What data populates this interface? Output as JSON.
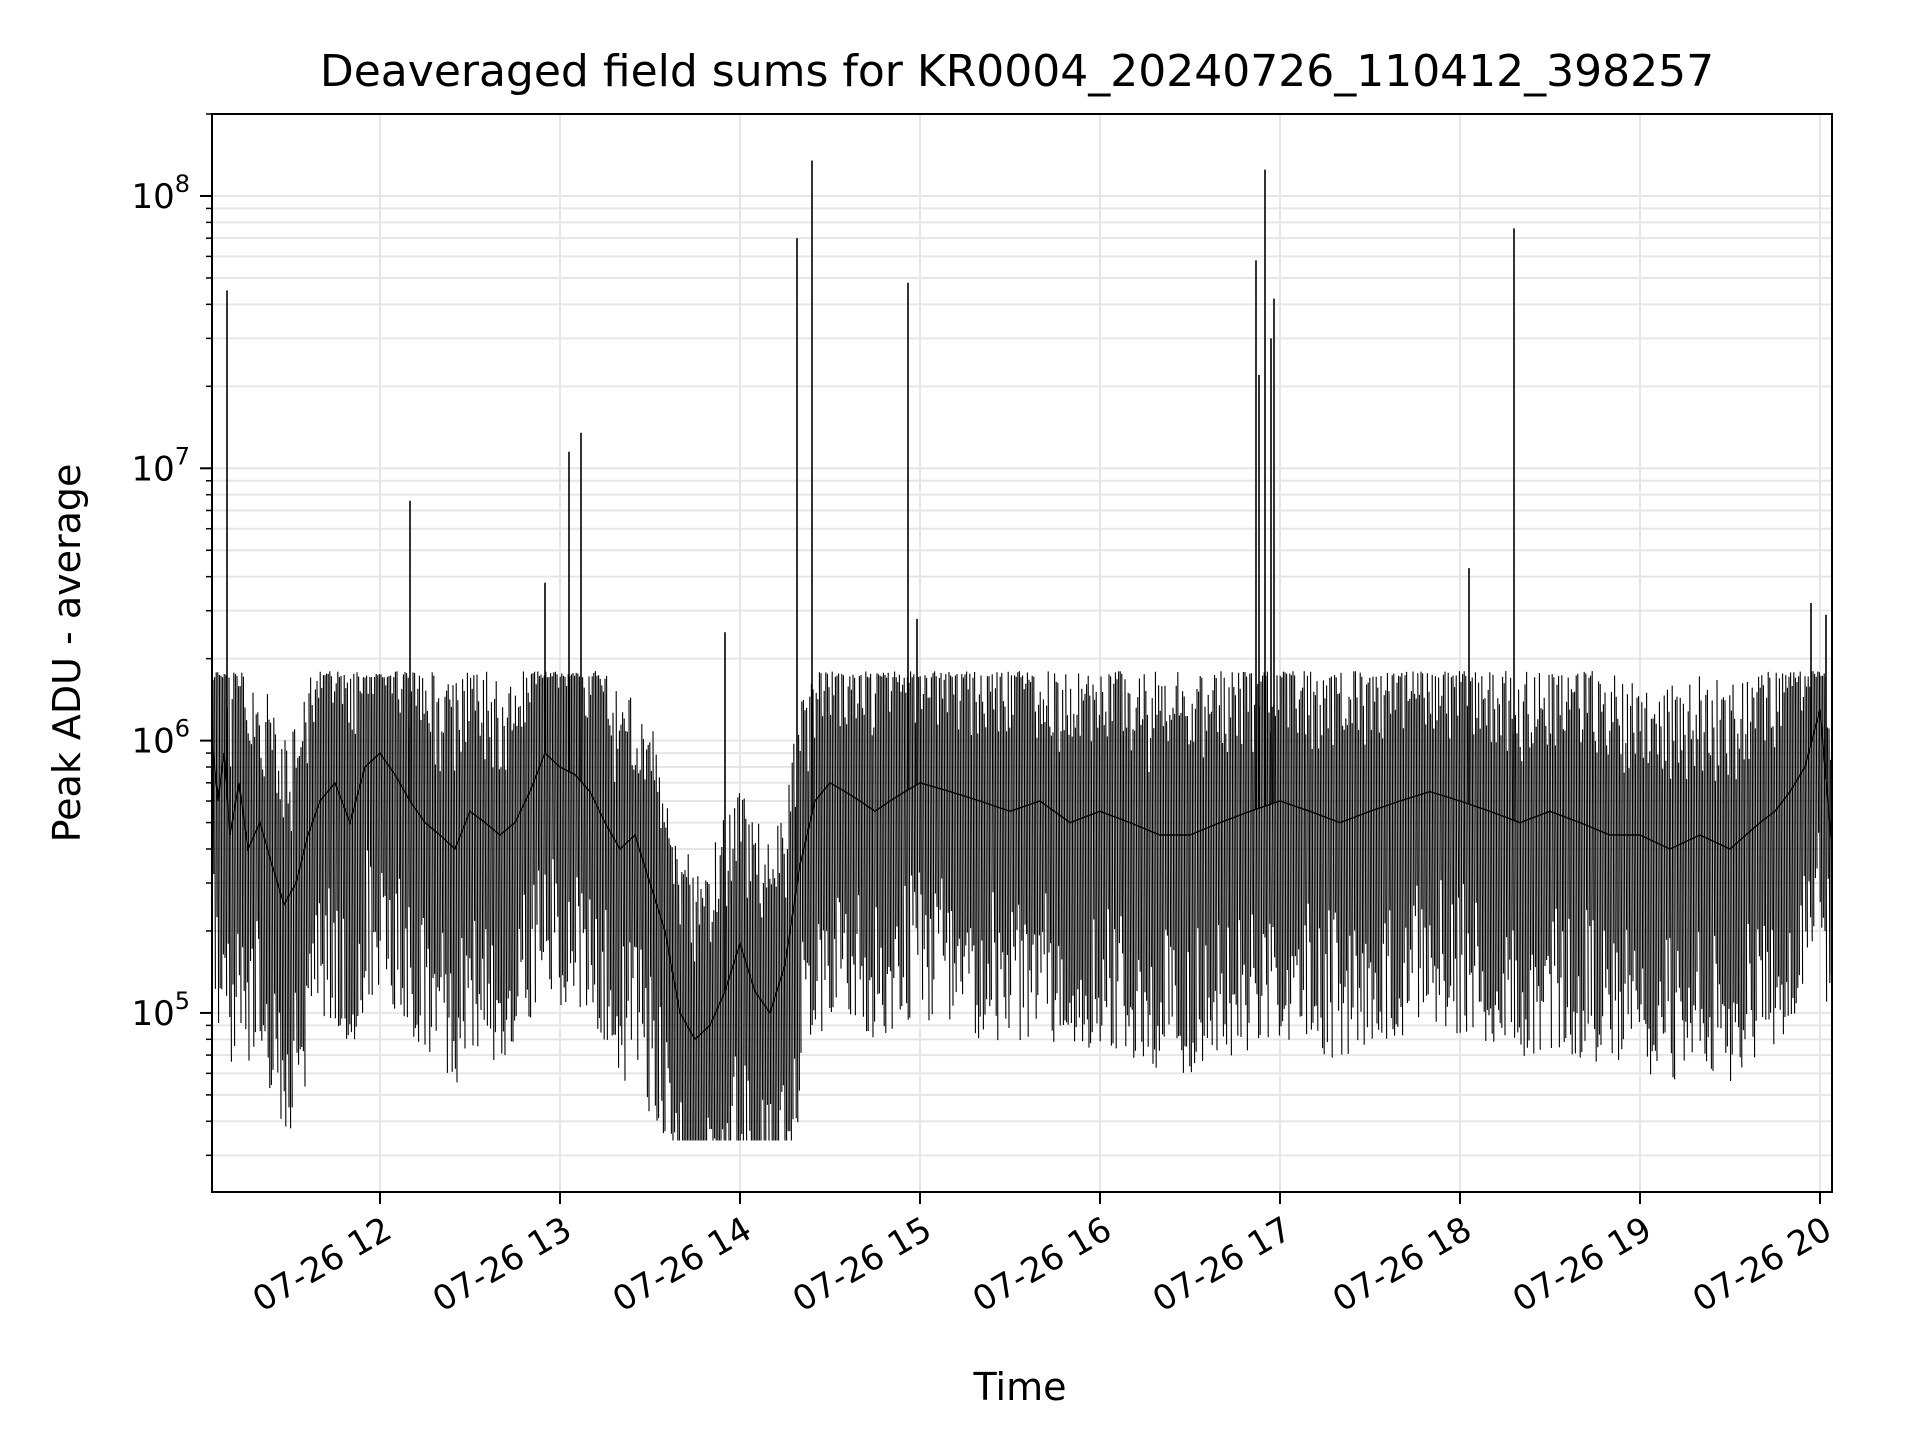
{
  "chart_data": {
    "type": "line",
    "title": "Deaveraged field sums for KR0004_20240726_110412_398257",
    "xlabel": "Time",
    "ylabel": "Peak ADU - average",
    "yscale": "log",
    "grid": true,
    "line_color": "#000000",
    "grid_color": "#e6e6e6",
    "xlim": [
      "2024-07-26 11:04",
      "2024-07-26 20:04"
    ],
    "ylim": [
      22000,
      200000000
    ],
    "x_ticks": [
      {
        "value": "2024-07-26 12:00",
        "label": "07-26 12"
      },
      {
        "value": "2024-07-26 13:00",
        "label": "07-26 13"
      },
      {
        "value": "2024-07-26 14:00",
        "label": "07-26 14"
      },
      {
        "value": "2024-07-26 15:00",
        "label": "07-26 15"
      },
      {
        "value": "2024-07-26 16:00",
        "label": "07-26 16"
      },
      {
        "value": "2024-07-26 17:00",
        "label": "07-26 17"
      },
      {
        "value": "2024-07-26 18:00",
        "label": "07-26 18"
      },
      {
        "value": "2024-07-26 19:00",
        "label": "07-26 19"
      },
      {
        "value": "2024-07-26 20:00",
        "label": "07-26 20"
      }
    ],
    "y_ticks": [
      {
        "value": 100000,
        "base": "10",
        "exp": "5"
      },
      {
        "value": 1000000,
        "base": "10",
        "exp": "6"
      },
      {
        "value": 10000000,
        "base": "10",
        "exp": "7"
      },
      {
        "value": 100000000,
        "base": "10",
        "exp": "8"
      }
    ],
    "series": [
      {
        "x": [
          "2024-07-26 11:04",
          "2024-07-26 11:06",
          "2024-07-26 11:08",
          "2024-07-26 11:10",
          "2024-07-26 11:13",
          "2024-07-26 11:16",
          "2024-07-26 11:20",
          "2024-07-26 11:24",
          "2024-07-26 11:28",
          "2024-07-26 11:32",
          "2024-07-26 11:36",
          "2024-07-26 11:40",
          "2024-07-26 11:45",
          "2024-07-26 11:50",
          "2024-07-26 11:55",
          "2024-07-26 12:00",
          "2024-07-26 12:05",
          "2024-07-26 12:10",
          "2024-07-26 12:15",
          "2024-07-26 12:20",
          "2024-07-26 12:25",
          "2024-07-26 12:30",
          "2024-07-26 12:35",
          "2024-07-26 12:40",
          "2024-07-26 12:45",
          "2024-07-26 12:50",
          "2024-07-26 12:55",
          "2024-07-26 13:00",
          "2024-07-26 13:05",
          "2024-07-26 13:10",
          "2024-07-26 13:15",
          "2024-07-26 13:20",
          "2024-07-26 13:25",
          "2024-07-26 13:30",
          "2024-07-26 13:35",
          "2024-07-26 13:40",
          "2024-07-26 13:45",
          "2024-07-26 13:50",
          "2024-07-26 13:55",
          "2024-07-26 14:00",
          "2024-07-26 14:05",
          "2024-07-26 14:10",
          "2024-07-26 14:15",
          "2024-07-26 14:20",
          "2024-07-26 14:25",
          "2024-07-26 14:30",
          "2024-07-26 14:35",
          "2024-07-26 14:40",
          "2024-07-26 14:45",
          "2024-07-26 14:50",
          "2024-07-26 14:55",
          "2024-07-26 15:00",
          "2024-07-26 15:10",
          "2024-07-26 15:20",
          "2024-07-26 15:30",
          "2024-07-26 15:40",
          "2024-07-26 15:50",
          "2024-07-26 16:00",
          "2024-07-26 16:10",
          "2024-07-26 16:20",
          "2024-07-26 16:30",
          "2024-07-26 16:40",
          "2024-07-26 16:50",
          "2024-07-26 17:00",
          "2024-07-26 17:10",
          "2024-07-26 17:20",
          "2024-07-26 17:30",
          "2024-07-26 17:40",
          "2024-07-26 17:50",
          "2024-07-26 18:00",
          "2024-07-26 18:10",
          "2024-07-26 18:20",
          "2024-07-26 18:30",
          "2024-07-26 18:40",
          "2024-07-26 18:50",
          "2024-07-26 19:00",
          "2024-07-26 19:10",
          "2024-07-26 19:20",
          "2024-07-26 19:30",
          "2024-07-26 19:40",
          "2024-07-26 19:45",
          "2024-07-26 19:50",
          "2024-07-26 19:55",
          "2024-07-26 20:00",
          "2024-07-26 20:04"
        ],
        "y": [
          1000000,
          600000,
          900000,
          450000,
          700000,
          400000,
          500000,
          350000,
          250000,
          300000,
          450000,
          600000,
          700000,
          500000,
          800000,
          900000,
          750000,
          600000,
          500000,
          450000,
          400000,
          550000,
          500000,
          450000,
          500000,
          650000,
          900000,
          800000,
          750000,
          650000,
          500000,
          400000,
          450000,
          300000,
          200000,
          100000,
          80000,
          90000,
          120000,
          180000,
          120000,
          100000,
          150000,
          350000,
          600000,
          700000,
          650000,
          600000,
          550000,
          600000,
          650000,
          700000,
          650000,
          600000,
          550000,
          600000,
          500000,
          550000,
          500000,
          450000,
          450000,
          500000,
          550000,
          600000,
          550000,
          500000,
          550000,
          600000,
          650000,
          600000,
          550000,
          500000,
          550000,
          500000,
          450000,
          450000,
          400000,
          450000,
          400000,
          500000,
          550000,
          650000,
          800000,
          1300000,
          400000
        ]
      }
    ],
    "spikes": [
      {
        "x": "2024-07-26 11:09",
        "y": 45000000
      },
      {
        "x": "2024-07-26 12:10",
        "y": 7600000
      },
      {
        "x": "2024-07-26 12:55",
        "y": 3800000
      },
      {
        "x": "2024-07-26 13:03",
        "y": 11500000
      },
      {
        "x": "2024-07-26 13:07",
        "y": 13500000
      },
      {
        "x": "2024-07-26 13:55",
        "y": 2500000
      },
      {
        "x": "2024-07-26 14:19",
        "y": 70000000
      },
      {
        "x": "2024-07-26 14:24",
        "y": 135000000
      },
      {
        "x": "2024-07-26 14:56",
        "y": 48000000
      },
      {
        "x": "2024-07-26 14:59",
        "y": 2800000
      },
      {
        "x": "2024-07-26 16:52",
        "y": 58000000
      },
      {
        "x": "2024-07-26 16:53",
        "y": 22000000
      },
      {
        "x": "2024-07-26 16:55",
        "y": 125000000
      },
      {
        "x": "2024-07-26 16:57",
        "y": 30000000
      },
      {
        "x": "2024-07-26 16:58",
        "y": 42000000
      },
      {
        "x": "2024-07-26 18:03",
        "y": 4300000
      },
      {
        "x": "2024-07-26 18:18",
        "y": 76000000
      },
      {
        "x": "2024-07-26 19:57",
        "y": 3200000
      },
      {
        "x": "2024-07-26 20:02",
        "y": 2900000
      }
    ]
  }
}
